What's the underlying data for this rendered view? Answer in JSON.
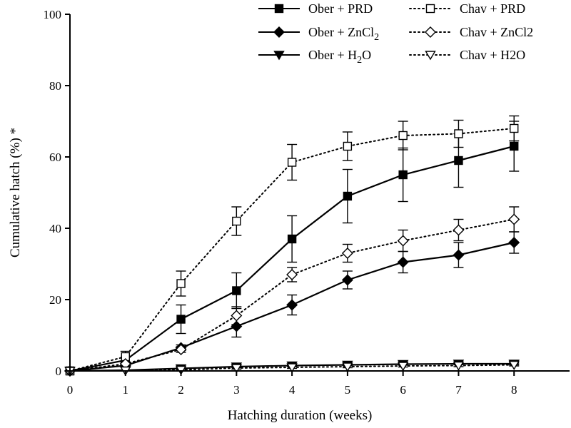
{
  "chart_data": {
    "type": "line",
    "xlabel": "Hatching duration (weeks)",
    "ylabel": "Cumulative hatch (%) *",
    "xlim": [
      0,
      9
    ],
    "ylim": [
      0,
      100
    ],
    "x_ticks": [
      0,
      1,
      2,
      3,
      4,
      5,
      6,
      7,
      8
    ],
    "y_ticks": [
      0,
      20,
      40,
      60,
      80,
      100
    ],
    "grid": false,
    "legend_position": "top-right",
    "series": [
      {
        "name": "Ober + PRD",
        "legend_main": "Ober + PRD",
        "legend_sub": "",
        "legend_tail": "",
        "marker": "square",
        "filled": true,
        "line": "solid",
        "x": [
          0,
          1,
          2,
          3,
          4,
          5,
          6,
          7,
          8
        ],
        "y": [
          0,
          3,
          14.5,
          22.5,
          37,
          49,
          55,
          59,
          63
        ],
        "err": [
          0,
          0.8,
          4,
          5,
          6.5,
          7.5,
          7.5,
          7.5,
          7
        ]
      },
      {
        "name": "Ober + ZnCl2",
        "legend_main": "Ober + ZnCl",
        "legend_sub": "2",
        "legend_tail": "",
        "marker": "diamond",
        "filled": true,
        "line": "solid",
        "x": [
          0,
          1,
          2,
          3,
          4,
          5,
          6,
          7,
          8
        ],
        "y": [
          0,
          1.5,
          6.5,
          12.5,
          18.5,
          25.5,
          30.5,
          32.5,
          36
        ],
        "err": [
          0,
          0.5,
          0.8,
          3,
          2.8,
          2.5,
          3,
          3.5,
          3
        ]
      },
      {
        "name": "Ober + H2O",
        "legend_main": "Ober + H",
        "legend_sub": "2",
        "legend_tail": "O",
        "marker": "triangle-down",
        "filled": true,
        "line": "solid",
        "x": [
          0,
          1,
          2,
          3,
          4,
          5,
          6,
          7,
          8
        ],
        "y": [
          0,
          0.2,
          0.7,
          1.2,
          1.5,
          1.7,
          1.9,
          2,
          2
        ],
        "err": [
          0,
          0,
          0.2,
          0.3,
          0.3,
          0.3,
          0.3,
          0.3,
          0.3
        ]
      },
      {
        "name": "Chav + PRD",
        "legend_main": "Chav + PRD",
        "legend_sub": "",
        "legend_tail": "",
        "marker": "square",
        "filled": false,
        "line": "dotted",
        "x": [
          0,
          1,
          2,
          3,
          4,
          5,
          6,
          7,
          8
        ],
        "y": [
          0,
          4,
          24.5,
          42,
          58.5,
          63,
          66,
          66.5,
          68
        ],
        "err": [
          0,
          1.5,
          3.5,
          4,
          5,
          4,
          4,
          3.8,
          3.5
        ]
      },
      {
        "name": "Chav + ZnCl2",
        "legend_main": "Chav + ZnCl2",
        "legend_sub": "",
        "legend_tail": "",
        "marker": "diamond",
        "filled": false,
        "line": "dotted",
        "x": [
          0,
          1,
          2,
          3,
          4,
          5,
          6,
          7,
          8
        ],
        "y": [
          0,
          2,
          6,
          15.5,
          27,
          33,
          36.5,
          39.5,
          42.5
        ],
        "err": [
          0,
          0.5,
          0.8,
          2.5,
          2,
          2.5,
          3,
          3,
          3.5
        ]
      },
      {
        "name": "Chav + H2O",
        "legend_main": "Chav + H2O",
        "legend_sub": "",
        "legend_tail": "",
        "marker": "triangle-down",
        "filled": false,
        "line": "dotted",
        "x": [
          0,
          1,
          2,
          3,
          4,
          5,
          6,
          7,
          8
        ],
        "y": [
          0,
          0.1,
          0.3,
          0.8,
          1,
          1.2,
          1.4,
          1.5,
          1.7
        ],
        "err": [
          0,
          0,
          0.2,
          0.3,
          0.3,
          0.3,
          0.3,
          0.3,
          0.3
        ]
      }
    ]
  }
}
